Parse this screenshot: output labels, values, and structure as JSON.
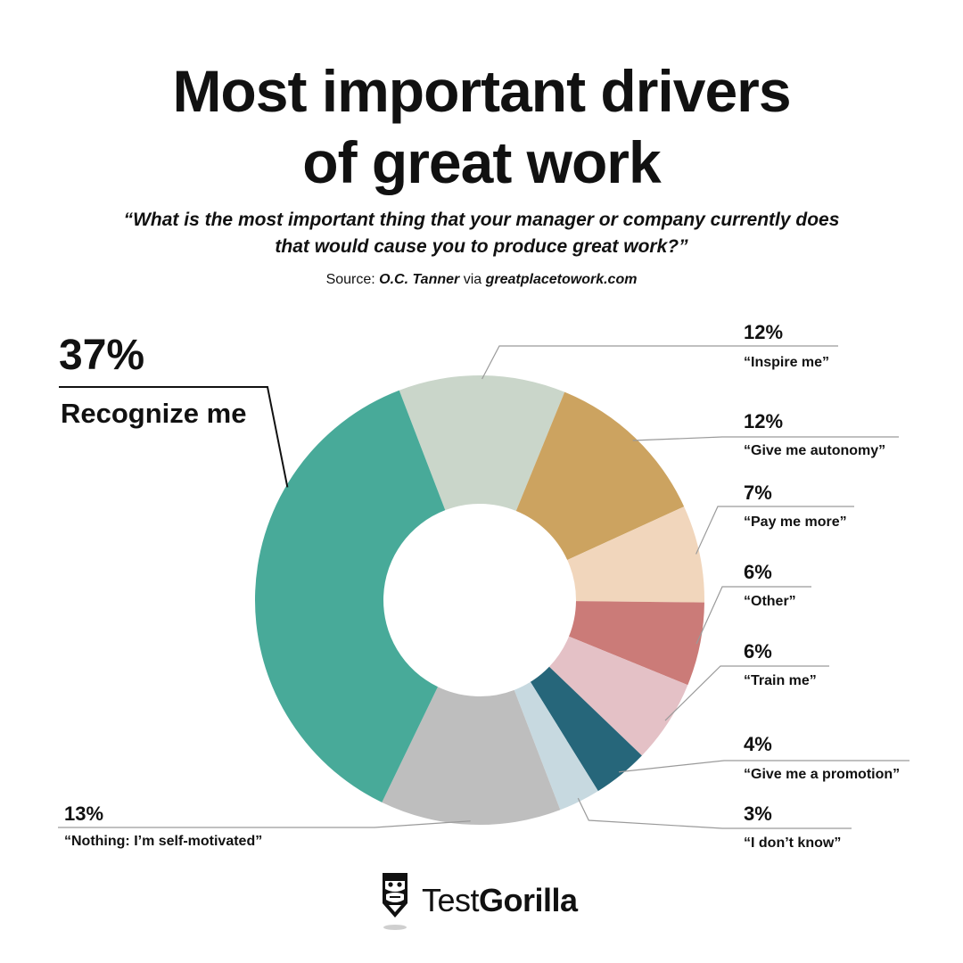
{
  "title_line1": "Most important drivers",
  "title_line2": "of great work",
  "question": "“What is the most important thing that your manager or company currently does that would cause you to produce great work?”",
  "source": {
    "prefix": "Source:",
    "org": "O.C. Tanner",
    "via": "via",
    "site": "greatplacetowork.com"
  },
  "brand": {
    "light": "Test",
    "bold": "Gorilla"
  },
  "chart_data": {
    "type": "pie",
    "variant": "donut",
    "unit": "%",
    "slices": [
      {
        "label": "“Inspire me”",
        "value": 12,
        "value_label": "12%",
        "color": "#cad6ca"
      },
      {
        "label": "“Give me autonomy”",
        "value": 12,
        "value_label": "12%",
        "color": "#cca360"
      },
      {
        "label": "“Pay me more”",
        "value": 7,
        "value_label": "7%",
        "color": "#f1d6bc"
      },
      {
        "label": "“Other”",
        "value": 6,
        "value_label": "6%",
        "color": "#cb7b78"
      },
      {
        "label": "“Train me”",
        "value": 6,
        "value_label": "6%",
        "color": "#e4c1c6"
      },
      {
        "label": "“Give me a promotion”",
        "value": 4,
        "value_label": "4%",
        "color": "#26667a"
      },
      {
        "label": "“I don’t know”",
        "value": 3,
        "value_label": "3%",
        "color": "#c7d9e0"
      },
      {
        "label": "“Nothing: I’m self-motivated”",
        "value": 13,
        "value_label": "13%",
        "color": "#bebebe"
      },
      {
        "label": "Recognize me",
        "value": 37,
        "value_label": "37%",
        "color": "#48aa99"
      }
    ]
  }
}
